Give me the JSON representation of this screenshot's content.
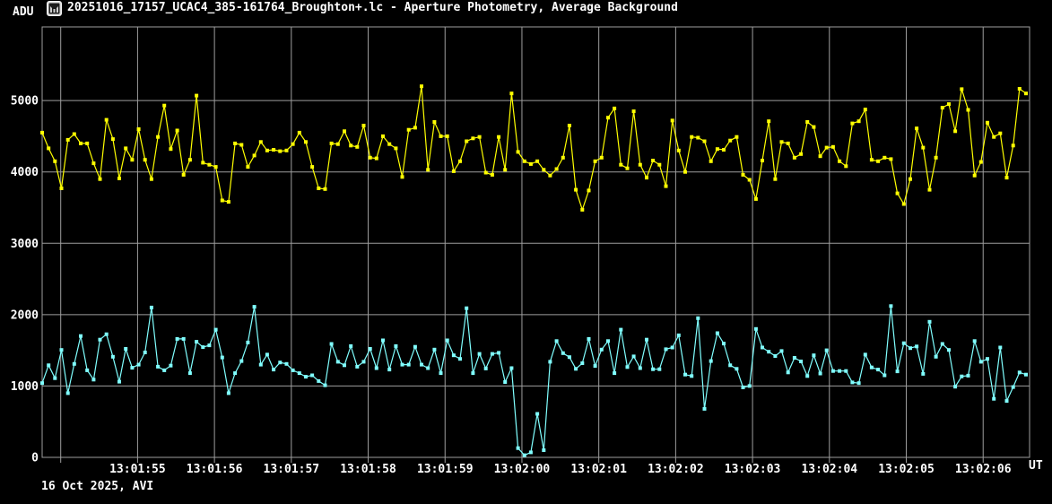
{
  "window": {
    "title": "20251016_17157_UCAC4_385-161764_Broughton+.lc - Aperture Photometry, Average Background",
    "icon": "lightcurve-app-icon"
  },
  "labels": {
    "y_axis_unit": "ADU",
    "x_axis_unit": "UT",
    "footer": "16 Oct 2025, AVI"
  },
  "chart_data": {
    "type": "line",
    "title": "Aperture Photometry, Average Background",
    "background_color": "#000000",
    "grid": true,
    "grid_color": "#9e9e9e",
    "text_color": "#ffffff",
    "ylabel": "ADU",
    "xlabel": "UT",
    "ylim": [
      0,
      6032
    ],
    "y_ticks": [
      0,
      1000,
      2000,
      3000,
      4000,
      5000
    ],
    "x_axis": {
      "start_time": "13:01:53.76",
      "step_seconds": 0.08366,
      "end_time": "13:02:06.6",
      "unlabeled_first_gridline": "13:01:54",
      "tick_labels": [
        "13:01:55",
        "13:01:56",
        "13:01:57",
        "13:01:58",
        "13:01:59",
        "13:02:00",
        "13:02:01",
        "13:02:02",
        "13:02:03",
        "13:02:04",
        "13:02:05",
        "13:02:06"
      ]
    },
    "series": [
      {
        "name": "yellow",
        "color": "#ffff00",
        "marker": "square",
        "values": [
          4550,
          4330,
          4150,
          3770,
          4450,
          4530,
          4400,
          4400,
          4120,
          3900,
          4730,
          4460,
          3910,
          4330,
          4170,
          4600,
          4170,
          3900,
          4490,
          4930,
          4320,
          4580,
          3960,
          4170,
          5070,
          4130,
          4100,
          4070,
          3600,
          3580,
          4400,
          4380,
          4070,
          4230,
          4420,
          4300,
          4310,
          4290,
          4300,
          4390,
          4550,
          4420,
          4070,
          3770,
          3760,
          4400,
          4390,
          4570,
          4370,
          4350,
          4650,
          4200,
          4190,
          4500,
          4390,
          4330,
          3930,
          4590,
          4620,
          5200,
          4030,
          4700,
          4500,
          4500,
          4010,
          4150,
          4430,
          4470,
          4490,
          3990,
          3960,
          4490,
          4030,
          5100,
          4280,
          4150,
          4110,
          4150,
          4030,
          3950,
          4040,
          4200,
          4650,
          3750,
          3470,
          3740,
          4150,
          4200,
          4760,
          4890,
          4100,
          4050,
          4850,
          4100,
          3920,
          4160,
          4100,
          3800,
          4720,
          4300,
          4000,
          4490,
          4480,
          4430,
          4150,
          4320,
          4310,
          4440,
          4490,
          3960,
          3890,
          3620,
          4160,
          4710,
          3900,
          4420,
          4400,
          4200,
          4250,
          4700,
          4630,
          4220,
          4340,
          4350,
          4150,
          4080,
          4680,
          4710,
          4875,
          4170,
          4150,
          4200,
          4180,
          3700,
          3550,
          3900,
          4610,
          4340,
          3750,
          4200,
          4900,
          4950,
          4570,
          5160,
          4870,
          3950,
          4140,
          4690,
          4490,
          4540,
          3920,
          4370,
          5165,
          5100
        ]
      },
      {
        "name": "cyan",
        "color": "#80ffff",
        "marker": "square",
        "values": [
          1040,
          1290,
          1110,
          1505,
          900,
          1310,
          1700,
          1220,
          1090,
          1650,
          1725,
          1410,
          1060,
          1520,
          1255,
          1300,
          1470,
          2100,
          1270,
          1220,
          1285,
          1660,
          1660,
          1180,
          1620,
          1545,
          1570,
          1790,
          1400,
          900,
          1180,
          1350,
          1610,
          2110,
          1300,
          1440,
          1230,
          1330,
          1310,
          1220,
          1180,
          1130,
          1150,
          1070,
          1010,
          1590,
          1340,
          1290,
          1560,
          1270,
          1340,
          1520,
          1250,
          1640,
          1230,
          1560,
          1300,
          1300,
          1550,
          1300,
          1250,
          1510,
          1180,
          1640,
          1430,
          1380,
          2090,
          1180,
          1450,
          1245,
          1450,
          1465,
          1055,
          1250,
          130,
          30,
          70,
          610,
          100,
          1340,
          1630,
          1460,
          1405,
          1240,
          1320,
          1660,
          1280,
          1510,
          1630,
          1180,
          1790,
          1265,
          1415,
          1250,
          1650,
          1235,
          1235,
          1515,
          1540,
          1710,
          1160,
          1140,
          1950,
          680,
          1350,
          1740,
          1595,
          1290,
          1240,
          980,
          1000,
          1800,
          1540,
          1480,
          1420,
          1490,
          1190,
          1395,
          1345,
          1140,
          1430,
          1175,
          1500,
          1210,
          1210,
          1210,
          1050,
          1040,
          1440,
          1260,
          1230,
          1150,
          2120,
          1205,
          1600,
          1530,
          1555,
          1170,
          1900,
          1410,
          1590,
          1505,
          990,
          1135,
          1145,
          1630,
          1340,
          1380,
          820,
          1540,
          790,
          985,
          1190,
          1160
        ]
      }
    ]
  }
}
